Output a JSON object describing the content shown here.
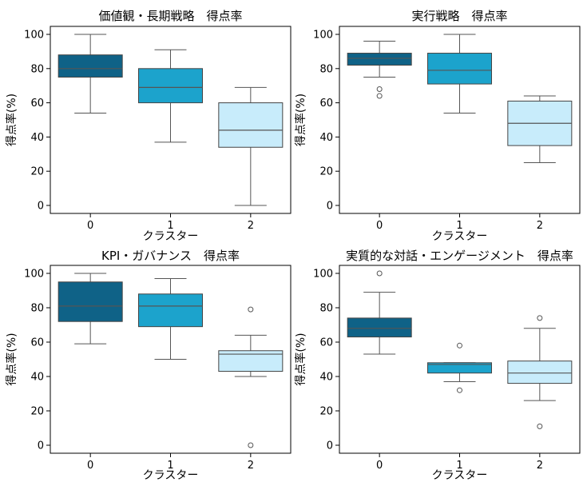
{
  "chart_data": [
    {
      "type": "box",
      "title": "価値観・長期戦略　得点率",
      "xlabel": "クラスター",
      "ylabel": "得点率(%)",
      "ylim": [
        0,
        100
      ],
      "yticks": [
        0,
        20,
        40,
        60,
        80,
        100
      ],
      "categories": [
        "0",
        "1",
        "2"
      ],
      "colors": [
        "#0f6287",
        "#1ca3cc",
        "#c8ecfb"
      ],
      "boxes": [
        {
          "whislo": 54,
          "q1": 75,
          "med": 80,
          "q3": 88,
          "whishi": 100,
          "fliers": []
        },
        {
          "whislo": 37,
          "q1": 60,
          "med": 69,
          "q3": 80,
          "whishi": 91,
          "fliers": []
        },
        {
          "whislo": 0,
          "q1": 34,
          "med": 44,
          "q3": 60,
          "whishi": 69,
          "fliers": []
        }
      ]
    },
    {
      "type": "box",
      "title": "実行戦略　得点率",
      "xlabel": "クラスター",
      "ylabel": "得点率(%)",
      "ylim": [
        0,
        100
      ],
      "yticks": [
        0,
        20,
        40,
        60,
        80,
        100
      ],
      "categories": [
        "0",
        "1",
        "2"
      ],
      "colors": [
        "#0f6287",
        "#1ca3cc",
        "#c8ecfb"
      ],
      "boxes": [
        {
          "whislo": 75,
          "q1": 82,
          "med": 86,
          "q3": 89,
          "whishi": 96,
          "fliers": [
            68,
            64
          ]
        },
        {
          "whislo": 54,
          "q1": 71,
          "med": 79,
          "q3": 89,
          "whishi": 100,
          "fliers": []
        },
        {
          "whislo": 25,
          "q1": 35,
          "med": 48,
          "q3": 61,
          "whishi": 64,
          "fliers": []
        }
      ]
    },
    {
      "type": "box",
      "title": "KPI・ガバナンス　得点率",
      "xlabel": "クラスター",
      "ylabel": "得点率(%)",
      "ylim": [
        0,
        100
      ],
      "yticks": [
        0,
        20,
        40,
        60,
        80,
        100
      ],
      "categories": [
        "0",
        "1",
        "2"
      ],
      "colors": [
        "#0f6287",
        "#1ca3cc",
        "#c8ecfb"
      ],
      "boxes": [
        {
          "whislo": 59,
          "q1": 72,
          "med": 81,
          "q3": 95,
          "whishi": 100,
          "fliers": []
        },
        {
          "whislo": 50,
          "q1": 69,
          "med": 81,
          "q3": 88,
          "whishi": 97,
          "fliers": []
        },
        {
          "whislo": 40,
          "q1": 43,
          "med": 53,
          "q3": 55,
          "whishi": 64,
          "fliers": [
            79,
            0
          ]
        }
      ]
    },
    {
      "type": "box",
      "title": "実質的な対話・エンゲージメント　得点率",
      "xlabel": "クラスター",
      "ylabel": "得点率(%)",
      "ylim": [
        0,
        100
      ],
      "yticks": [
        0,
        20,
        40,
        60,
        80,
        100
      ],
      "categories": [
        "0",
        "1",
        "2"
      ],
      "colors": [
        "#0f6287",
        "#1ca3cc",
        "#c8ecfb"
      ],
      "boxes": [
        {
          "whislo": 53,
          "q1": 63,
          "med": 68,
          "q3": 74,
          "whishi": 89,
          "fliers": [
            100
          ]
        },
        {
          "whislo": 37,
          "q1": 42,
          "med": 47,
          "q3": 48,
          "whishi": 48,
          "fliers": [
            58,
            32
          ]
        },
        {
          "whislo": 26,
          "q1": 36,
          "med": 42,
          "q3": 49,
          "whishi": 68,
          "fliers": [
            74,
            11
          ]
        }
      ]
    }
  ]
}
